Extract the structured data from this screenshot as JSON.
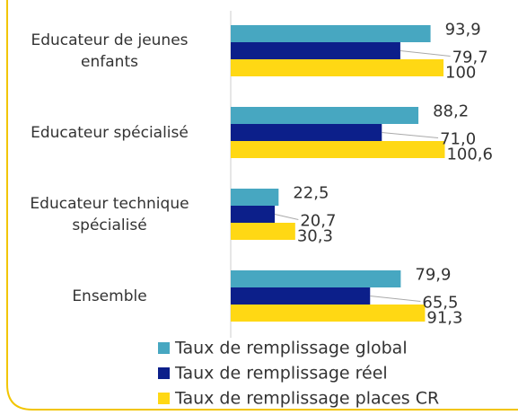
{
  "chart_data": {
    "type": "hbar",
    "categories": [
      "Educateur de jeunes enfants",
      "Educateur spécialisé",
      "Educateur technique spécialisé",
      "Ensemble"
    ],
    "series": [
      {
        "name": "Taux de remplissage global",
        "color": "#47a7c1",
        "values": [
          93.9,
          88.2,
          22.5,
          79.9
        ],
        "value_labels": [
          "93,9",
          "88,2",
          "22,5",
          "79,9"
        ]
      },
      {
        "name": "Taux de remplissage réel",
        "color": "#0c1f8a",
        "values": [
          79.7,
          71.0,
          20.7,
          65.5
        ],
        "value_labels": [
          "79,7",
          "71,0",
          "20,7",
          "65,5"
        ]
      },
      {
        "name": "Taux de remplissage places CR",
        "color": "#ffd814",
        "values": [
          100,
          100.6,
          30.3,
          91.3
        ],
        "value_labels": [
          "100",
          "100,6",
          "30,3",
          "91,3"
        ]
      }
    ],
    "xlim": [
      0,
      135
    ]
  }
}
